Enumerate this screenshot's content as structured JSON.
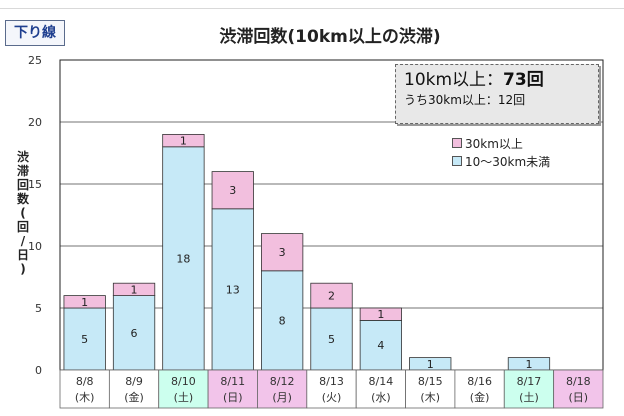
{
  "header": {
    "direction": "下り線",
    "title": "渋滞回数(10km以上の渋滞)"
  },
  "summary": {
    "main_prefix": "10km以上：",
    "main_value": "73回",
    "sub": "うち30km以上：12回"
  },
  "colors": {
    "lower": "#c6e9f7",
    "upper": "#f2bfde",
    "weekday_bg": "#ffffff",
    "saturday_bg": "#ccffee",
    "sunday_bg": "#f2c4ea"
  },
  "chart_data": {
    "type": "bar",
    "stacked": true,
    "ylabel": "渋滞回数(回/日)",
    "ylim": [
      0,
      25
    ],
    "yticks": [
      0,
      5,
      10,
      15,
      20,
      25
    ],
    "grid": true,
    "legend_position": "top-right",
    "categories": [
      {
        "date": "8/8",
        "day": "(木)",
        "type": "weekday"
      },
      {
        "date": "8/9",
        "day": "(金)",
        "type": "weekday"
      },
      {
        "date": "8/10",
        "day": "(土)",
        "type": "saturday"
      },
      {
        "date": "8/11",
        "day": "(日)",
        "type": "sunday"
      },
      {
        "date": "8/12",
        "day": "(月)",
        "type": "sunday"
      },
      {
        "date": "8/13",
        "day": "(火)",
        "type": "weekday"
      },
      {
        "date": "8/14",
        "day": "(水)",
        "type": "weekday"
      },
      {
        "date": "8/15",
        "day": "(木)",
        "type": "weekday"
      },
      {
        "date": "8/16",
        "day": "(金)",
        "type": "weekday"
      },
      {
        "date": "8/17",
        "day": "(土)",
        "type": "saturday"
      },
      {
        "date": "8/18",
        "day": "(日)",
        "type": "sunday"
      }
    ],
    "series": [
      {
        "name": "10～30km未満",
        "values": [
          5,
          6,
          18,
          13,
          8,
          5,
          4,
          1,
          0,
          1,
          0
        ]
      },
      {
        "name": "30km以上",
        "values": [
          1,
          1,
          1,
          3,
          3,
          2,
          1,
          0,
          0,
          0,
          0
        ]
      }
    ]
  }
}
